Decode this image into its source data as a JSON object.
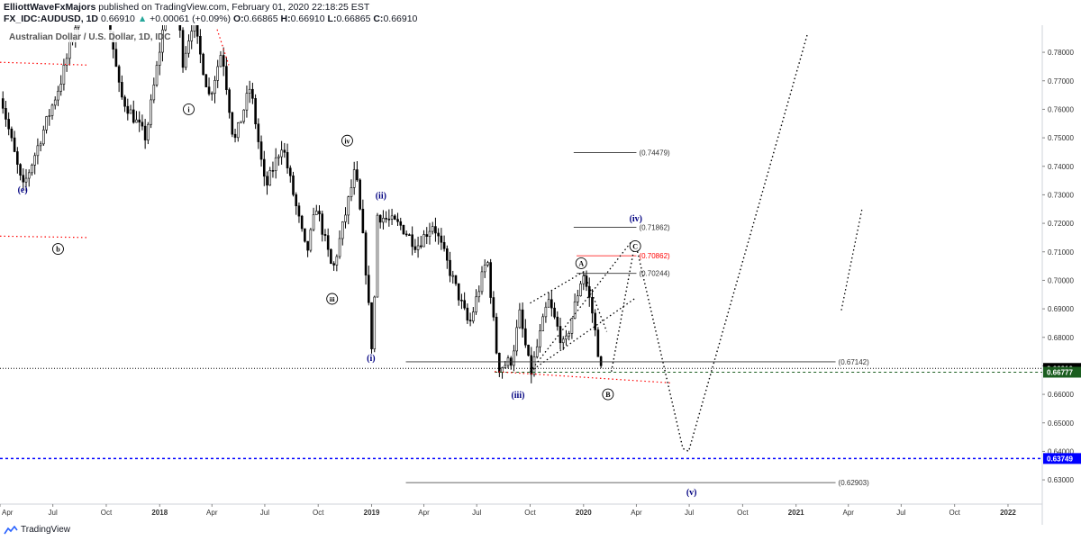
{
  "header": {
    "author": "ElliottWaveFxMajors",
    "published_text": "published on TradingView.com, February 01, 2020 22:18:25 EST",
    "symbol": "FX_IDC:AUDUSD, 1D",
    "last": "0.66910",
    "change_arrow": "▲",
    "change": "+0.00061 (+0.09%)",
    "open_label": "O:",
    "open": "0.66865",
    "high_label": "H:",
    "high": "0.66910",
    "low_label": "L:",
    "low": "0.66865",
    "close_label": "C:",
    "close": "0.66910"
  },
  "footer": {
    "brand": "TradingView",
    "icon": "tradingview-logo-icon"
  },
  "colors": {
    "candle": "#000000",
    "wave_label": "#000080",
    "target_red": "#ff0000",
    "price_tag_black": "#000000",
    "price_tag_green": "#1b5e20",
    "price_tag_blue": "#0000ff",
    "up": "#26a69a"
  },
  "chart_data": {
    "type": "candlestick",
    "title": "Australian Dollar / U.S. Dollar, 1D, IDC",
    "interval": "1D",
    "ylim": [
      0.6215,
      0.7895
    ],
    "y_ticks": [
      "0.78000",
      "0.77000",
      "0.76000",
      "0.75000",
      "0.74000",
      "0.73000",
      "0.72000",
      "0.71000",
      "0.70000",
      "0.69000",
      "0.68000",
      "0.67000",
      "0.66000",
      "0.65000",
      "0.64000",
      "0.63000"
    ],
    "x_ticks": [
      "Apr",
      "Jul",
      "Oct",
      "2018",
      "Apr",
      "Jul",
      "Oct",
      "2019",
      "Apr",
      "Jul",
      "Oct",
      "2020",
      "Apr",
      "Jul",
      "Oct",
      "2021",
      "Apr",
      "Jul",
      "Oct",
      "2022"
    ],
    "x_range": [
      "2017-04-01",
      "2022-03-01"
    ],
    "grid": false,
    "legend": "none",
    "price_path": [
      [
        "2017-04-01",
        0.766
      ],
      [
        "2017-05-10",
        0.732
      ],
      [
        "2017-07-15",
        0.77
      ],
      [
        "2017-08-20",
        0.798
      ],
      [
        "2017-09-20",
        0.812
      ],
      [
        "2017-10-25",
        0.765
      ],
      [
        "2017-12-08",
        0.75
      ],
      [
        "2018-01-26",
        0.813
      ],
      [
        "2018-02-09",
        0.776
      ],
      [
        "2018-02-27",
        0.791
      ],
      [
        "2018-03-28",
        0.764
      ],
      [
        "2018-04-18",
        0.781
      ],
      [
        "2018-05-09",
        0.748
      ],
      [
        "2018-06-06",
        0.768
      ],
      [
        "2018-07-02",
        0.732
      ],
      [
        "2018-07-31",
        0.748
      ],
      [
        "2018-09-11",
        0.709
      ],
      [
        "2018-09-28",
        0.726
      ],
      [
        "2018-10-26",
        0.703
      ],
      [
        "2018-12-04",
        0.739
      ],
      [
        "2018-12-20",
        0.709
      ],
      [
        "2019-01-03",
        0.672
      ],
      [
        "2019-01-10",
        0.723
      ],
      [
        "2019-02-21",
        0.719
      ],
      [
        "2019-03-20",
        0.712
      ],
      [
        "2019-04-17",
        0.72
      ],
      [
        "2019-06-18",
        0.684
      ],
      [
        "2019-07-19",
        0.708
      ],
      [
        "2019-08-07",
        0.669
      ],
      [
        "2019-08-30",
        0.672
      ],
      [
        "2019-09-13",
        0.688
      ],
      [
        "2019-10-02",
        0.667
      ],
      [
        "2019-11-01",
        0.693
      ],
      [
        "2019-11-29",
        0.676
      ],
      [
        "2019-12-31",
        0.703
      ],
      [
        "2020-01-15",
        0.69
      ],
      [
        "2020-01-31",
        0.6685
      ]
    ],
    "last_close": 0.6691,
    "horizontal_levels": [
      {
        "label": "(0.74479)",
        "value": 0.74479,
        "color": "black"
      },
      {
        "label": "(0.71862)",
        "value": 0.71862,
        "color": "black"
      },
      {
        "label": "(0.70862)",
        "value": 0.70862,
        "color": "red"
      },
      {
        "label": "(0.70244)",
        "value": 0.70244,
        "color": "black"
      },
      {
        "label": "(0.67142)",
        "value": 0.67142,
        "color": "black"
      },
      {
        "label": "(0.62903)",
        "value": 0.62903,
        "color": "black"
      }
    ],
    "price_tags": [
      {
        "label": "0.66910",
        "value": 0.6691,
        "color": "black"
      },
      {
        "label": "0.66777",
        "value": 0.66777,
        "color": "green"
      },
      {
        "label": "0.63749",
        "value": 0.63749,
        "color": "blue"
      }
    ],
    "wave_labels": [
      {
        "text": "(e)",
        "date": "2017-05-10",
        "value": 0.732,
        "style": "navy"
      },
      {
        "text": "b",
        "date": "2017-07-10",
        "value": 0.711,
        "style": "circle"
      },
      {
        "text": "i",
        "date": "2018-02-20",
        "value": 0.76,
        "style": "circle"
      },
      {
        "text": "iv",
        "date": "2018-11-20",
        "value": 0.749,
        "style": "circle"
      },
      {
        "text": "iii",
        "date": "2018-10-25",
        "value": 0.6935,
        "style": "circle"
      },
      {
        "text": "(ii)",
        "date": "2019-01-17",
        "value": 0.73,
        "style": "navy"
      },
      {
        "text": "(i)",
        "date": "2018-12-31",
        "value": 0.673,
        "style": "navy"
      },
      {
        "text": "(iii)",
        "date": "2019-09-10",
        "value": 0.66,
        "style": "navy"
      },
      {
        "text": "A",
        "date": "2019-12-28",
        "value": 0.706,
        "style": "circle"
      },
      {
        "text": "B",
        "date": "2020-02-12",
        "value": 0.66,
        "style": "circle"
      },
      {
        "text": "C",
        "date": "2020-03-30",
        "value": 0.712,
        "style": "circle"
      },
      {
        "text": "(iv)",
        "date": "2020-03-31",
        "value": 0.722,
        "style": "navy"
      },
      {
        "text": "(v)",
        "date": "2020-07-05",
        "value": 0.626,
        "style": "navy"
      }
    ]
  }
}
